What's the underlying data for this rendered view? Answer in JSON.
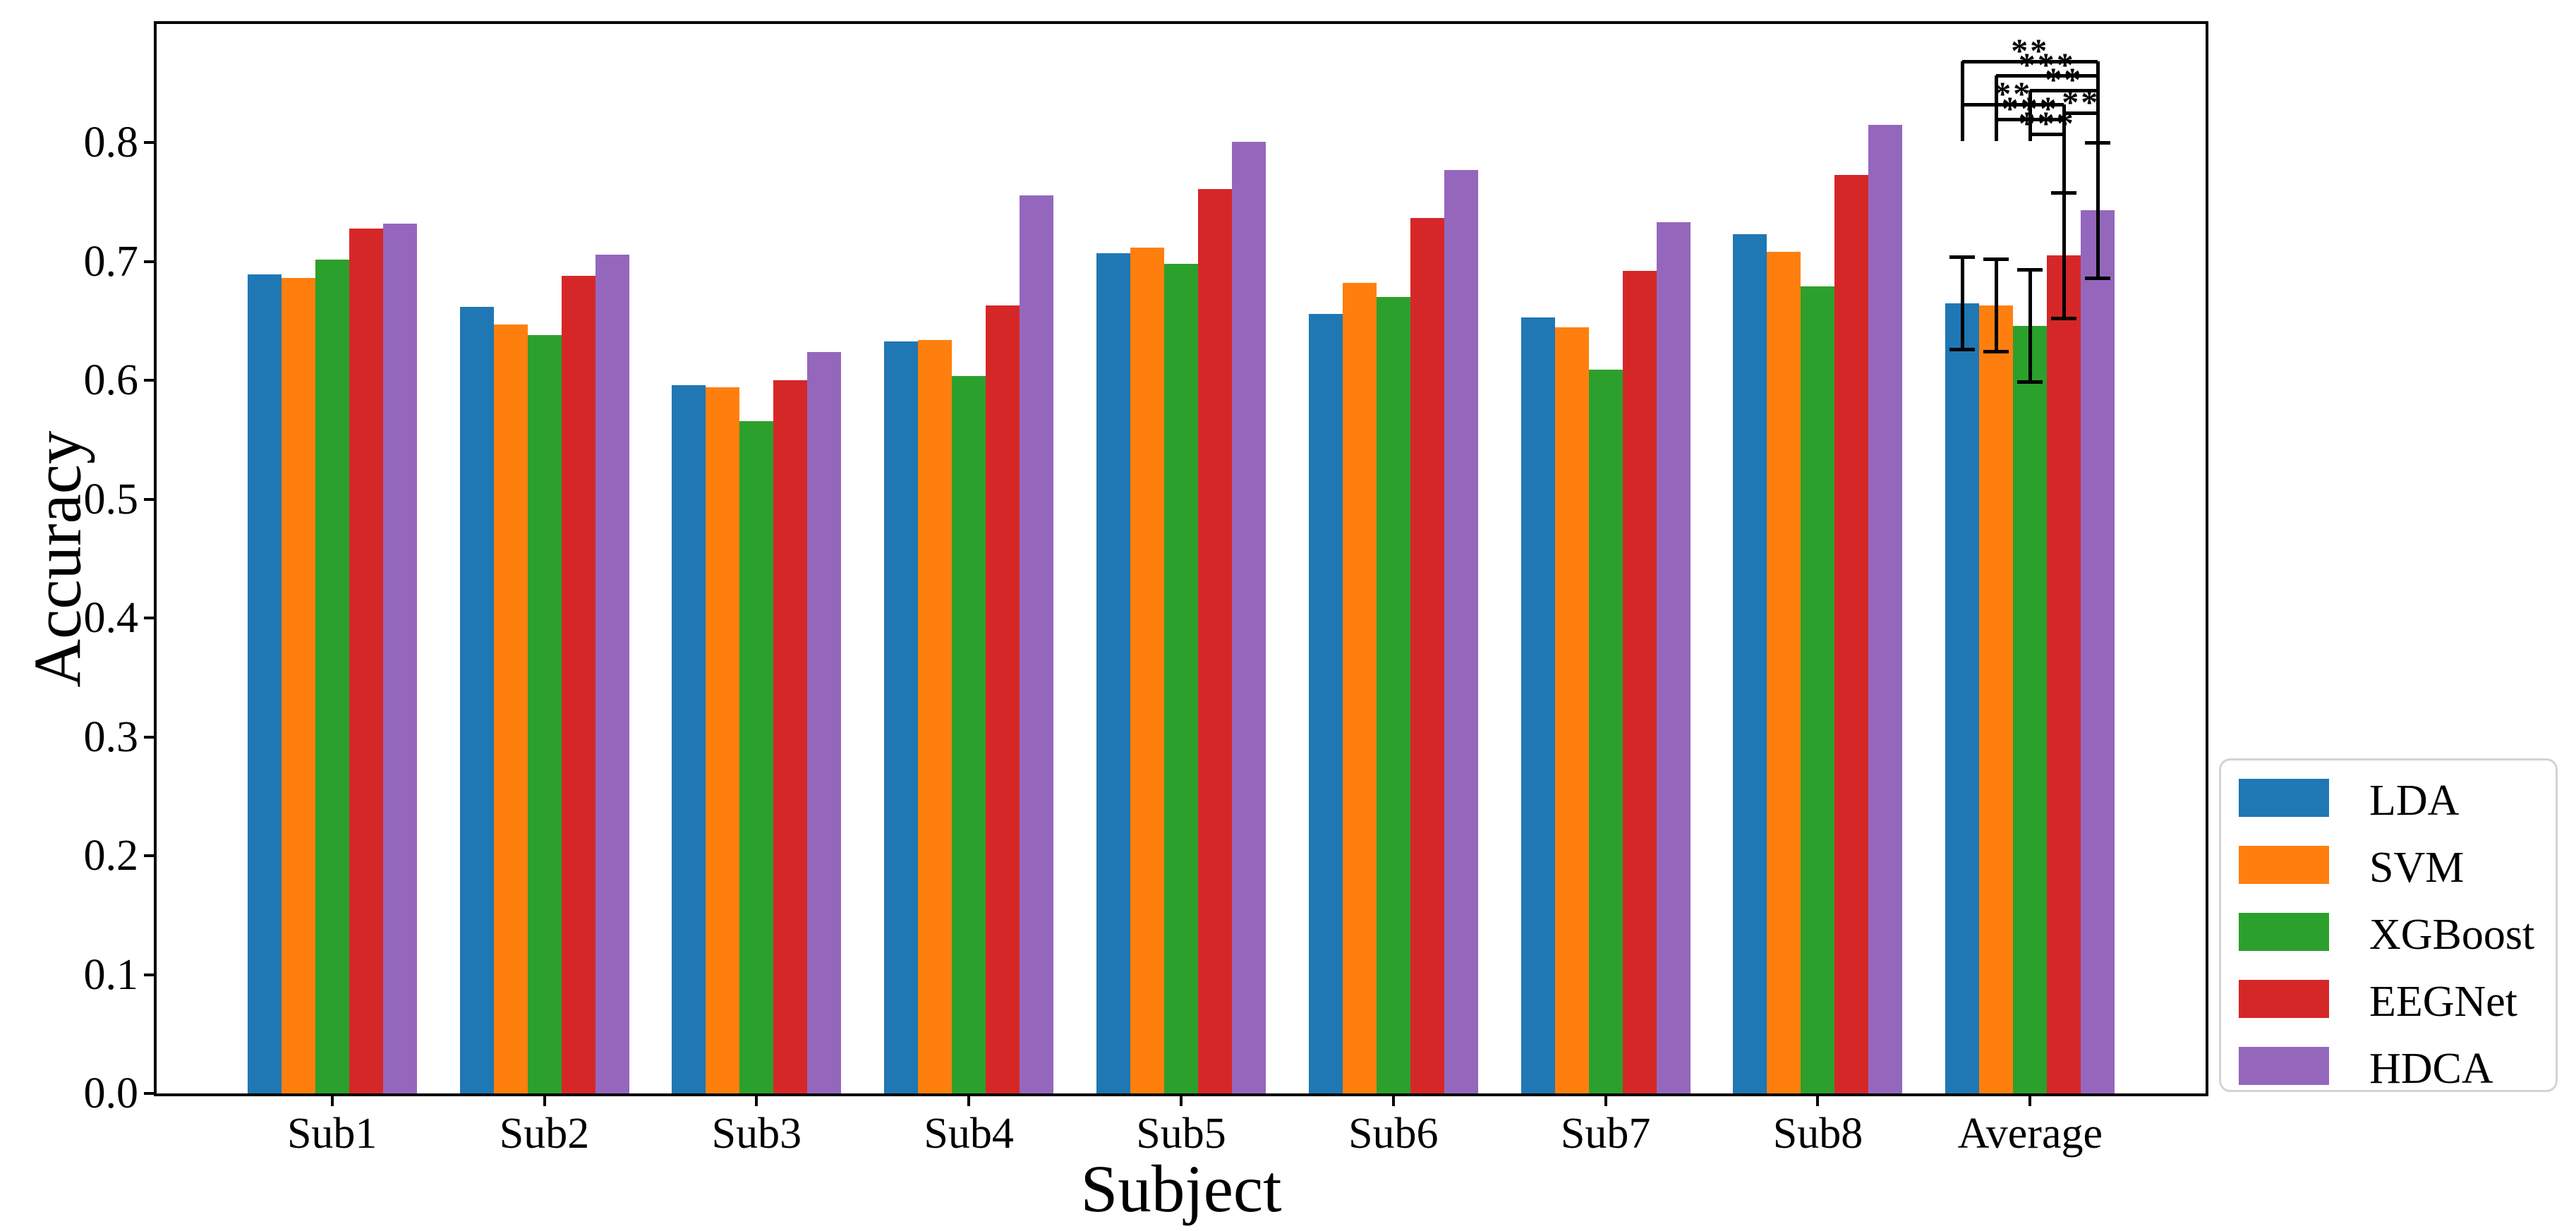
{
  "chart_data": {
    "type": "bar",
    "title": "",
    "xlabel": "Subject",
    "ylabel": "Accuracy",
    "categories": [
      "Sub1",
      "Sub2",
      "Sub3",
      "Sub4",
      "Sub5",
      "Sub6",
      "Sub7",
      "Sub8",
      "Average"
    ],
    "series": [
      {
        "name": "LDA",
        "color": "#1f77b4",
        "values": [
          0.689,
          0.662,
          0.596,
          0.633,
          0.707,
          0.656,
          0.653,
          0.723,
          0.665
        ]
      },
      {
        "name": "SVM",
        "color": "#ff7f0e",
        "values": [
          0.686,
          0.647,
          0.594,
          0.634,
          0.712,
          0.682,
          0.645,
          0.708,
          0.663
        ]
      },
      {
        "name": "XGBoost",
        "color": "#2ca02c",
        "values": [
          0.702,
          0.638,
          0.566,
          0.604,
          0.698,
          0.67,
          0.609,
          0.679,
          0.646
        ]
      },
      {
        "name": "EEGNet",
        "color": "#d62728",
        "values": [
          0.728,
          0.688,
          0.6,
          0.663,
          0.761,
          0.737,
          0.692,
          0.773,
          0.705
        ]
      },
      {
        "name": "HDCA",
        "color": "#9467bd",
        "values": [
          0.732,
          0.706,
          0.624,
          0.756,
          0.801,
          0.777,
          0.733,
          0.815,
          0.743
        ]
      }
    ],
    "error_bars": {
      "category": "Average",
      "plus_minus": {
        "LDA": 0.039,
        "SVM": 0.039,
        "XGBoost": 0.047,
        "EEGNet": 0.053,
        "HDCA": 0.057
      }
    },
    "significance_brackets": [
      {
        "pair": [
          "LDA",
          "HDCA"
        ],
        "label": "**"
      },
      {
        "pair": [
          "SVM",
          "HDCA"
        ],
        "label": "***"
      },
      {
        "pair": [
          "XGBoost",
          "HDCA"
        ],
        "label": "**"
      },
      {
        "pair": [
          "LDA",
          "EEGNet"
        ],
        "label": "**"
      },
      {
        "pair": [
          "EEGNet",
          "HDCA"
        ],
        "label": "**"
      },
      {
        "pair": [
          "SVM",
          "EEGNet"
        ],
        "label": "***"
      },
      {
        "pair": [
          "XGBoost",
          "EEGNet"
        ],
        "label": "***"
      }
    ],
    "yticks": [
      "0.0",
      "0.1",
      "0.2",
      "0.3",
      "0.4",
      "0.5",
      "0.6",
      "0.7",
      "0.8"
    ],
    "ylim": [
      0,
      0.9
    ],
    "grid": false,
    "legend_position": "outside lower right"
  },
  "legend": {
    "items": [
      {
        "label": "LDA",
        "color": "#1f77b4"
      },
      {
        "label": "SVM",
        "color": "#ff7f0e"
      },
      {
        "label": "XGBoost",
        "color": "#2ca02c"
      },
      {
        "label": "EEGNet",
        "color": "#d62728"
      },
      {
        "label": "HDCA",
        "color": "#9467bd"
      }
    ]
  }
}
